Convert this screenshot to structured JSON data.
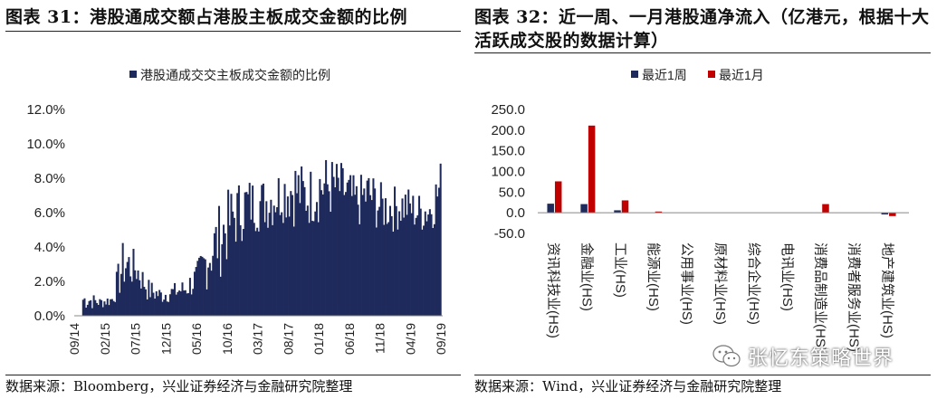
{
  "left_panel": {
    "title": "图表 31：港股通成交额占港股主板成交金额的比例",
    "source": "数据来源：Bloomberg，兴业证券经济与金融研究院整理"
  },
  "right_panel": {
    "title": "图表 32：近一周、一月港股通净流入（亿港元，根据十大活跃成交股的数据计算）",
    "source": "数据来源：Wind，兴业证券经济与金融研究院整理"
  },
  "watermark": {
    "text": "张忆东策略世界",
    "icon": "wechat-icon"
  },
  "chart_data": [
    {
      "type": "area",
      "title": "",
      "series": [
        {
          "name": "港股通成交交主板成交金额的比例",
          "color": "#1f2a5c"
        }
      ],
      "x_ticks": [
        "09/14",
        "02/15",
        "07/15",
        "12/15",
        "05/16",
        "10/16",
        "03/17",
        "08/17",
        "01/18",
        "06/18",
        "11/18",
        "04/19",
        "09/19"
      ],
      "y_ticks": [
        "0.0%",
        "2.0%",
        "4.0%",
        "6.0%",
        "8.0%",
        "10.0%",
        "12.0%"
      ],
      "ylim": [
        0,
        12
      ],
      "y_unit": "%",
      "x": [
        "2014-11",
        "2015-01",
        "2015-03",
        "2015-05",
        "2015-07",
        "2015-09",
        "2015-11",
        "2016-01",
        "2016-03",
        "2016-05",
        "2016-07",
        "2016-09",
        "2016-11",
        "2017-01",
        "2017-03",
        "2017-05",
        "2017-07",
        "2017-09",
        "2017-11",
        "2018-01",
        "2018-03",
        "2018-05",
        "2018-07",
        "2018-09",
        "2018-11",
        "2019-01",
        "2019-03",
        "2019-05",
        "2019-07",
        "2019-09"
      ],
      "low": [
        0.3,
        0.4,
        0.5,
        1.2,
        1.6,
        0.7,
        0.6,
        0.8,
        0.8,
        1.1,
        1.5,
        2.3,
        3.5,
        4.6,
        4.8,
        4.9,
        5.4,
        5.1,
        5.0,
        5.3,
        5.5,
        5.5,
        4.9,
        5.3,
        4.7,
        4.8,
        5.0,
        4.7,
        4.8,
        5.5
      ],
      "high": [
        1.5,
        1.1,
        1.3,
        4.7,
        3.7,
        2.2,
        1.7,
        1.9,
        2.2,
        3.2,
        5.4,
        6.9,
        7.8,
        8.2,
        8.0,
        8.4,
        8.8,
        9.4,
        8.5,
        9.5,
        9.3,
        8.9,
        8.0,
        8.7,
        7.8,
        7.6,
        7.7,
        7.2,
        7.3,
        9.4
      ],
      "grid": false,
      "legend": "top"
    },
    {
      "type": "bar",
      "title": "",
      "categories": [
        "资讯科技业(HS)",
        "金融业(HS)",
        "工业(HS)",
        "能源业(HS)",
        "公用事业(HS)",
        "原材料业(HS)",
        "综合企业(HS)",
        "电讯业(HS)",
        "消费品制造业(HS)",
        "消费者服务业(HS)",
        "地产建筑业(HS)"
      ],
      "series": [
        {
          "name": "最近1周",
          "color": "#1f2a5c",
          "values": [
            22,
            21,
            6,
            0,
            0,
            0,
            0,
            0,
            0,
            0,
            -4
          ]
        },
        {
          "name": "最近1月",
          "color": "#c00000",
          "values": [
            76,
            211,
            30,
            3,
            0,
            0,
            0,
            0,
            21,
            0,
            -8
          ]
        }
      ],
      "y_ticks": [
        "-50.0",
        "0.0",
        "50.0",
        "100.0",
        "150.0",
        "200.0",
        "250.0"
      ],
      "ylim": [
        -50,
        250
      ],
      "grid": false,
      "legend": "top"
    }
  ]
}
